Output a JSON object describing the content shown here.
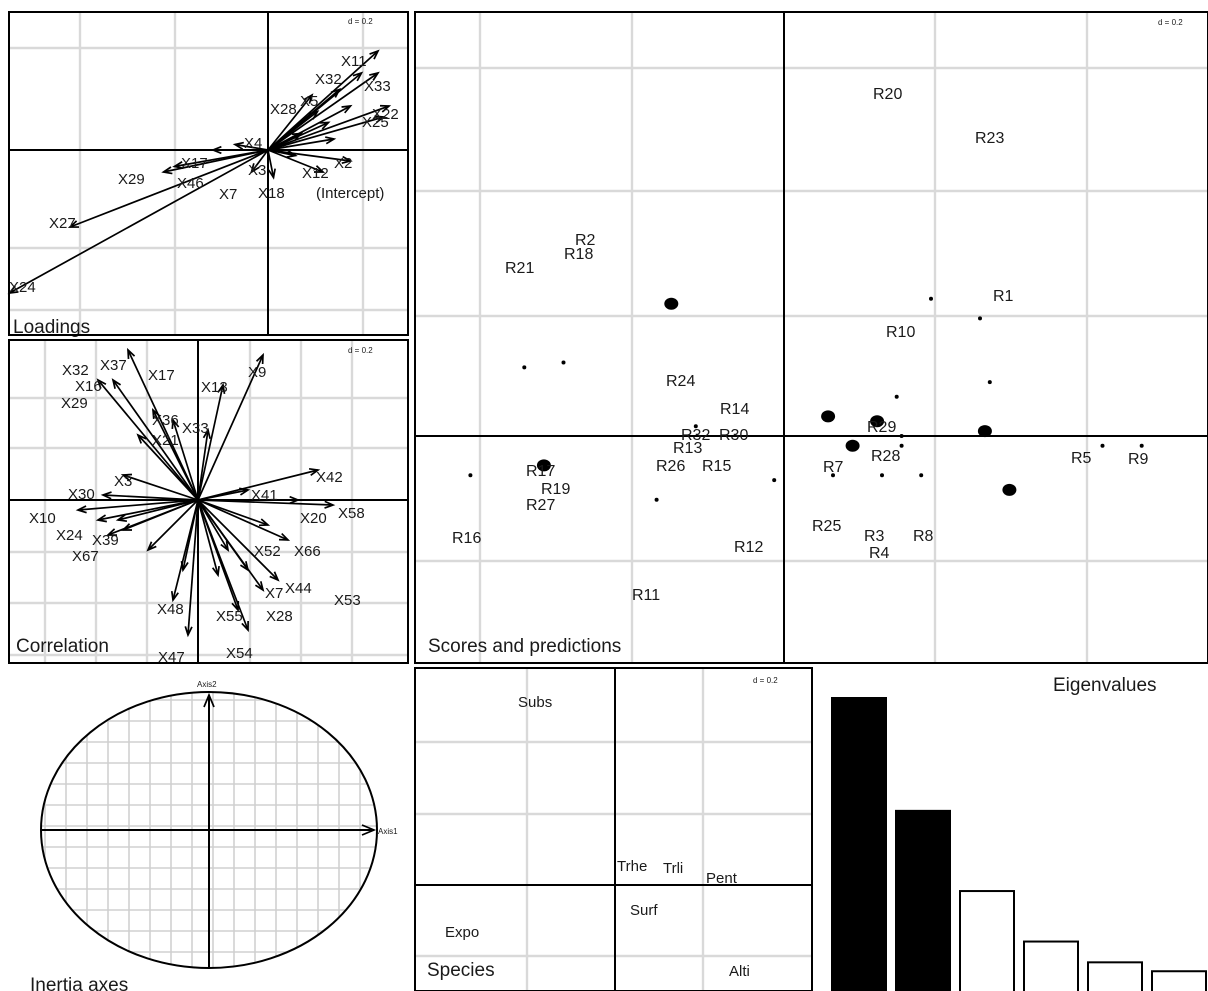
{
  "panels": {
    "loadings": {
      "title": "Loadings",
      "scale_label": "d = 0.2",
      "labels": [
        "X11",
        "X32",
        "X33",
        "X28",
        "X5",
        "X22",
        "X25",
        "X2",
        "X3",
        "X4",
        "X12",
        "X17",
        "X29",
        "X46",
        "X7",
        "X18",
        "(Intercept)",
        "X27",
        "X24"
      ]
    },
    "correlation": {
      "title": "Correlation",
      "scale_label": "d = 0.2",
      "labels": [
        "X32",
        "X37",
        "X17",
        "X16",
        "X29",
        "X13",
        "X9",
        "X33",
        "X36",
        "X21",
        "X3",
        "X42",
        "X30",
        "X41",
        "X10",
        "X24",
        "X58",
        "X20",
        "X39",
        "X67",
        "X66",
        "X52",
        "X44",
        "X7",
        "X28",
        "X53",
        "X48",
        "X55",
        "X47",
        "X54"
      ]
    },
    "scores": {
      "title": "Scores and predictions",
      "scale_label": "d = 0.2",
      "labels": [
        "R20",
        "R23",
        "R2",
        "R18",
        "R21",
        "R1",
        "R10",
        "R24",
        "R14",
        "R32",
        "R30",
        "R13",
        "R26",
        "R15",
        "R29",
        "R28",
        "R7",
        "R5",
        "R9",
        "R17",
        "R19",
        "R27",
        "R16",
        "R25",
        "R3",
        "R4",
        "R8",
        "R12",
        "R11"
      ]
    },
    "inertia": {
      "title": "Inertia axes",
      "axis1": "Axis1",
      "axis2": "Axis2"
    },
    "species": {
      "title": "Species",
      "scale_label": "d = 0.2",
      "labels": [
        "Subs",
        "Trhe",
        "Trli",
        "Pent",
        "Surf",
        "Expo",
        "Alti"
      ]
    },
    "eigen": {
      "title": "Eigenvalues"
    }
  },
  "chart_data": [
    {
      "type": "scatter",
      "name": "Loadings",
      "grid": true,
      "vectors": [
        {
          "label": "X11",
          "x": 0.2,
          "y": 0.18
        },
        {
          "label": "X32",
          "x": 0.17,
          "y": 0.14
        },
        {
          "label": "X33",
          "x": 0.2,
          "y": 0.14
        },
        {
          "label": "X22",
          "x": 0.22,
          "y": 0.08
        },
        {
          "label": "X25",
          "x": 0.21,
          "y": 0.06
        },
        {
          "label": "X2",
          "x": 0.15,
          "y": -0.02
        },
        {
          "label": "X12",
          "x": 0.1,
          "y": -0.04
        },
        {
          "label": "X18",
          "x": 0.01,
          "y": -0.05
        },
        {
          "label": "X7",
          "x": -0.03,
          "y": -0.04
        },
        {
          "label": "X17",
          "x": -0.17,
          "y": -0.03
        },
        {
          "label": "X29",
          "x": -0.19,
          "y": -0.04
        },
        {
          "label": "X27",
          "x": -0.36,
          "y": -0.14
        },
        {
          "label": "X24",
          "x": -0.47,
          "y": -0.26
        }
      ]
    },
    {
      "type": "scatter",
      "name": "Correlation",
      "grid": true,
      "vectors": [
        {
          "label": "X37",
          "x": -0.14,
          "y": 0.3
        },
        {
          "label": "X16",
          "x": -0.2,
          "y": 0.24
        },
        {
          "label": "X13",
          "x": 0.05,
          "y": 0.23
        },
        {
          "label": "X9",
          "x": 0.13,
          "y": 0.29
        },
        {
          "label": "X42",
          "x": 0.24,
          "y": 0.06
        },
        {
          "label": "X58",
          "x": 0.27,
          "y": -0.01
        },
        {
          "label": "X10",
          "x": -0.24,
          "y": -0.02
        },
        {
          "label": "X66",
          "x": 0.18,
          "y": -0.08
        },
        {
          "label": "X44",
          "x": 0.16,
          "y": -0.16
        },
        {
          "label": "X54",
          "x": 0.1,
          "y": -0.26
        },
        {
          "label": "X47",
          "x": -0.02,
          "y": -0.27
        },
        {
          "label": "X39",
          "x": -0.15,
          "y": -0.06
        }
      ]
    },
    {
      "type": "scatter",
      "name": "Scores and predictions",
      "grid": true,
      "points": [
        {
          "label": "R20",
          "x": 0.3,
          "y": 0.28
        },
        {
          "label": "R23",
          "x": 0.4,
          "y": 0.24
        },
        {
          "label": "R1",
          "x": 0.42,
          "y": 0.11
        },
        {
          "label": "R10",
          "x": 0.23,
          "y": 0.08
        },
        {
          "label": "R21",
          "x": -0.53,
          "y": 0.14
        },
        {
          "label": "R18",
          "x": -0.45,
          "y": 0.15
        },
        {
          "label": "R24",
          "x": -0.18,
          "y": 0.02
        },
        {
          "label": "R29",
          "x": 0.24,
          "y": 0.0
        },
        {
          "label": "R28",
          "x": 0.24,
          "y": -0.02
        },
        {
          "label": "R5",
          "x": 0.65,
          "y": -0.02
        },
        {
          "label": "R9",
          "x": 0.73,
          "y": -0.02
        },
        {
          "label": "R16",
          "x": -0.64,
          "y": -0.08
        },
        {
          "label": "R25",
          "x": 0.1,
          "y": -0.08
        },
        {
          "label": "R3",
          "x": 0.2,
          "y": -0.08
        },
        {
          "label": "R8",
          "x": 0.28,
          "y": -0.08
        },
        {
          "label": "R12",
          "x": -0.02,
          "y": -0.09
        },
        {
          "label": "R11",
          "x": -0.26,
          "y": -0.13
        }
      ],
      "predictions": [
        {
          "x": -0.23,
          "y": 0.27
        },
        {
          "x": 0.09,
          "y": 0.04
        },
        {
          "x": 0.19,
          "y": 0.03
        },
        {
          "x": 0.41,
          "y": 0.01
        },
        {
          "x": 0.14,
          "y": -0.02
        },
        {
          "x": -0.49,
          "y": -0.06
        },
        {
          "x": 0.46,
          "y": -0.11
        }
      ]
    },
    {
      "type": "bar",
      "name": "Eigenvalues",
      "categories": [
        "1",
        "2",
        "3",
        "4",
        "5",
        "6"
      ],
      "values": [
        1.0,
        0.62,
        0.35,
        0.18,
        0.11,
        0.08
      ],
      "selected_axes": 2
    }
  ]
}
